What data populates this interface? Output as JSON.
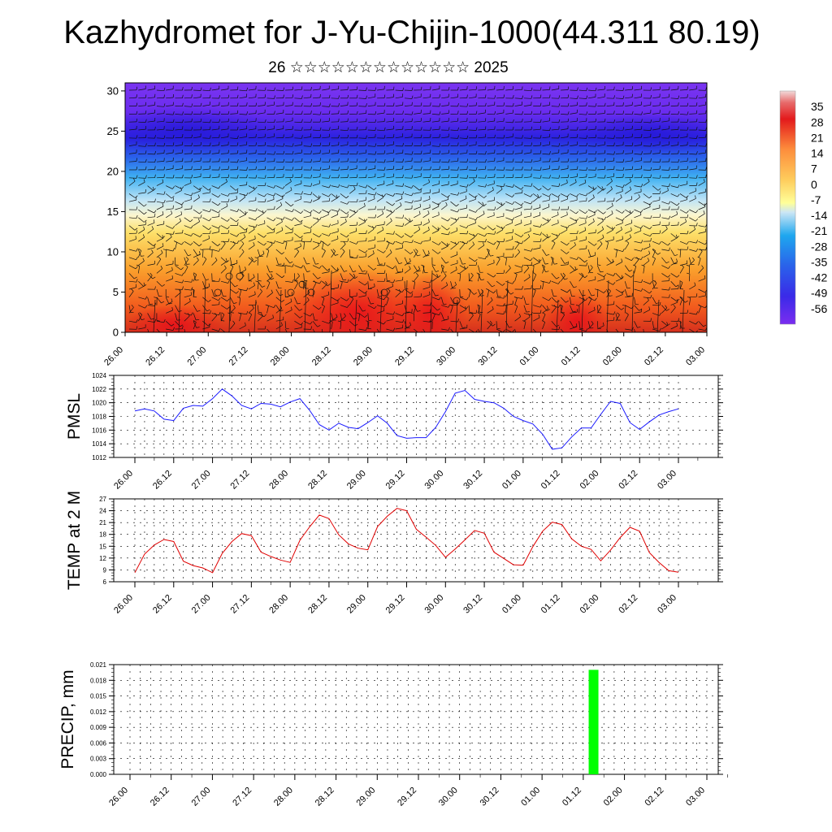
{
  "title": "Kazhydromet for J-Yu-Chijin-1000(44.311 80.19)",
  "subtitle": "26 ☆☆☆☆☆☆☆☆☆☆☆☆☆ 2025",
  "time_labels": [
    "26.00",
    "26.12",
    "27.00",
    "27.12",
    "28.00",
    "28.12",
    "29.00",
    "29.12",
    "30.00",
    "30.12",
    "01.00",
    "01.12",
    "02.00",
    "02.12",
    "03.00"
  ],
  "colors": {
    "pmsl_line": "#1a1aff",
    "temp_line": "#e00000",
    "precip_bar": "#00ff00",
    "colorbar": [
      "#f2f2f2",
      "#e31a1c",
      "#f03b20",
      "#fd8d3c",
      "#fecc5c",
      "#ffff99",
      "#cce6f5",
      "#1ea7ef",
      "#3a78ef",
      "#2a24e6",
      "#7b2df0"
    ]
  },
  "chart_data": [
    {
      "id": "cross-section",
      "type": "heatmap",
      "yticks": [
        0,
        5,
        10,
        15,
        20,
        25,
        30
      ],
      "ylim": [
        0,
        31
      ],
      "colorbar_labels": [
        "35",
        "28",
        "21",
        "14",
        "7",
        "0",
        "-7",
        "-14",
        "-21",
        "-28",
        "-35",
        "-42",
        "-49",
        "-56"
      ],
      "colorbar_range": [
        -63,
        42
      ]
    },
    {
      "id": "pmsl",
      "type": "line",
      "ylabel": "PMSL",
      "ylim": [
        1012,
        1024
      ],
      "yticks": [
        1012,
        1014,
        1016,
        1018,
        1020,
        1022,
        1024
      ],
      "values": [
        1018.8,
        1019.1,
        1018.8,
        1017.6,
        1017.4,
        1019.2,
        1019.6,
        1019.5,
        1020.6,
        1022.0,
        1021.0,
        1019.6,
        1019.1,
        1019.9,
        1019.8,
        1019.4,
        1020.1,
        1020.6,
        1018.9,
        1016.8,
        1016.0,
        1017.0,
        1016.4,
        1016.2,
        1017.1,
        1018.1,
        1017.0,
        1015.2,
        1014.8,
        1014.9,
        1014.9,
        1016.4,
        1018.7,
        1021.4,
        1021.8,
        1020.5,
        1020.2,
        1020.0,
        1019.2,
        1018.0,
        1017.4,
        1016.9,
        1015.4,
        1013.2,
        1013.4,
        1015.0,
        1016.3,
        1016.3,
        1018.3,
        1020.2,
        1019.9,
        1017.1,
        1016.1,
        1017.2,
        1018.2,
        1018.7,
        1019.1
      ]
    },
    {
      "id": "temp",
      "type": "line",
      "ylabel": "TEMP at 2 M",
      "ylim": [
        6,
        27
      ],
      "yticks": [
        6,
        9,
        12,
        15,
        18,
        21,
        24,
        27
      ],
      "values": [
        8.3,
        13.0,
        15.3,
        16.7,
        16.2,
        11.2,
        10.1,
        9.5,
        8.3,
        13.2,
        16.2,
        18.2,
        17.7,
        13.5,
        12.4,
        11.5,
        10.9,
        16.5,
        19.9,
        22.9,
        22.0,
        17.9,
        15.6,
        14.5,
        14.1,
        20.0,
        22.6,
        24.6,
        24.0,
        19.3,
        17.3,
        15.2,
        12.2,
        14.3,
        16.6,
        19.0,
        18.3,
        13.5,
        11.9,
        10.3,
        10.2,
        14.9,
        18.8,
        21.1,
        20.5,
        16.9,
        15.0,
        14.2,
        11.3,
        14.0,
        17.2,
        19.8,
        18.8,
        13.4,
        10.9,
        8.8,
        8.4
      ]
    },
    {
      "id": "precip",
      "type": "bar",
      "ylabel": "PRECIP, mm",
      "ylim": [
        0,
        0.021
      ],
      "yticks": [
        "0.000",
        "0.003",
        "0.006",
        "0.009",
        "0.012",
        "0.015",
        "0.018",
        "0.021"
      ],
      "bars": [
        {
          "x": "01.15",
          "value": 0.02
        }
      ]
    }
  ]
}
